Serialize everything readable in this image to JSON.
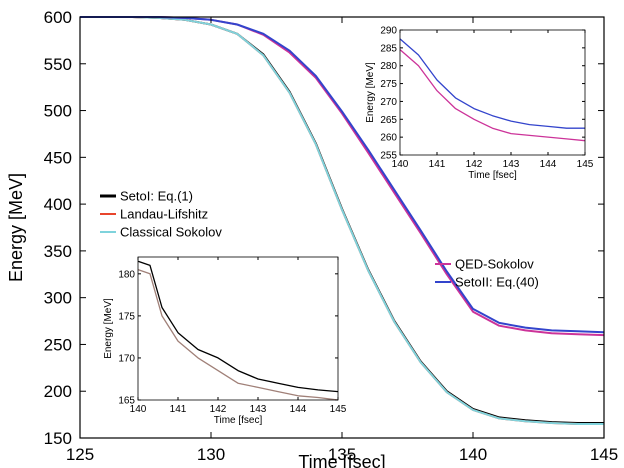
{
  "chart_data": [
    {
      "type": "line",
      "xlabel": "Time [fsec]",
      "ylabel": "Energy [MeV]",
      "xlim": [
        125,
        145
      ],
      "ylim": [
        150,
        600
      ],
      "xticks": [
        "125",
        "130",
        "135",
        "140",
        "145"
      ],
      "yticks": [
        "150",
        "200",
        "250",
        "300",
        "350",
        "400",
        "450",
        "500",
        "550",
        "600"
      ],
      "series": [
        {
          "name": "SetoI: Eq.(1)",
          "color": "#000000",
          "x": [
            125,
            126,
            127,
            128,
            129,
            130,
            131,
            132,
            133,
            134,
            135,
            136,
            137,
            138,
            139,
            140,
            141,
            142,
            143,
            144,
            145
          ],
          "y": [
            600,
            600,
            600,
            599,
            597,
            592,
            582,
            560,
            520,
            465,
            395,
            330,
            275,
            232,
            200,
            181,
            172,
            169,
            167,
            166,
            166
          ]
        },
        {
          "name": "Landau-Lifshitz",
          "color": "#e8452c",
          "x": [
            125,
            126,
            127,
            128,
            129,
            130,
            131,
            132,
            133,
            134,
            135,
            136,
            137,
            138,
            139,
            140,
            141,
            142,
            143,
            144,
            145
          ],
          "y": [
            600,
            600,
            600,
            599,
            597,
            592,
            582,
            559,
            519,
            464,
            394,
            329,
            274,
            231,
            199,
            180,
            171,
            168,
            166,
            165,
            165
          ]
        },
        {
          "name": "Classical Sokolov",
          "color": "#7fd3dc",
          "x": [
            125,
            126,
            127,
            128,
            129,
            130,
            131,
            132,
            133,
            134,
            135,
            136,
            137,
            138,
            139,
            140,
            141,
            142,
            143,
            144,
            145
          ],
          "y": [
            600,
            600,
            600,
            599,
            597,
            592,
            582,
            559,
            519,
            464,
            394,
            329,
            274,
            231,
            199,
            180,
            171,
            168,
            166,
            165,
            165
          ]
        },
        {
          "name": "QED-Sokolov",
          "color": "#cc3399",
          "x": [
            125,
            126,
            127,
            128,
            129,
            130,
            131,
            132,
            133,
            134,
            135,
            136,
            137,
            138,
            139,
            140,
            141,
            142,
            143,
            144,
            145
          ],
          "y": [
            600,
            600,
            600,
            600,
            599,
            597,
            592,
            581,
            562,
            535,
            497,
            455,
            412,
            369,
            325,
            285,
            270,
            265,
            262,
            261,
            260
          ]
        },
        {
          "name": "SetoII: Eq.(40)",
          "color": "#3344cc",
          "x": [
            125,
            126,
            127,
            128,
            129,
            130,
            131,
            132,
            133,
            134,
            135,
            136,
            137,
            138,
            139,
            140,
            141,
            142,
            143,
            144,
            145
          ],
          "y": [
            600,
            600,
            600,
            600,
            599,
            597,
            592,
            582,
            564,
            537,
            499,
            458,
            415,
            372,
            328,
            288,
            273,
            268,
            265,
            264,
            263
          ]
        }
      ]
    },
    {
      "type": "line",
      "xlabel": "Time [fsec]",
      "ylabel": "Energy [MeV]",
      "xlim": [
        140,
        145
      ],
      "ylim": [
        255,
        290
      ],
      "xticks": [
        "140",
        "141",
        "142",
        "143",
        "144",
        "145"
      ],
      "yticks": [
        "255",
        "260",
        "265",
        "270",
        "275",
        "280",
        "285",
        "290"
      ],
      "series": [
        {
          "color": "#cc3399",
          "x": [
            140,
            140.5,
            141,
            141.5,
            142,
            142.5,
            143,
            143.5,
            144,
            144.5,
            145
          ],
          "y": [
            284.5,
            280,
            273,
            268,
            265,
            262.5,
            261,
            260.5,
            260,
            259.5,
            259
          ]
        },
        {
          "color": "#3344cc",
          "x": [
            140,
            140.5,
            141,
            141.5,
            142,
            142.5,
            143,
            143.5,
            144,
            144.5,
            145
          ],
          "y": [
            287.5,
            283,
            276,
            271,
            268,
            266,
            264.5,
            263.5,
            263,
            262.5,
            262.5
          ]
        }
      ]
    },
    {
      "type": "line",
      "xlabel": "Time [fsec]",
      "ylabel": "Energy [MeV]",
      "xlim": [
        140,
        145
      ],
      "ylim": [
        165,
        182
      ],
      "xticks": [
        "140",
        "141",
        "142",
        "143",
        "144",
        "145"
      ],
      "yticks": [
        "165",
        "170",
        "175",
        "180"
      ],
      "series": [
        {
          "color": "#000000",
          "x": [
            140,
            140.3,
            140.6,
            141,
            141.5,
            142,
            142.5,
            143,
            143.5,
            144,
            144.5,
            145
          ],
          "y": [
            181.5,
            181,
            176,
            173,
            171,
            170,
            168.5,
            167.5,
            167,
            166.5,
            166.2,
            166
          ]
        },
        {
          "color": "#a08078",
          "x": [
            140,
            140.3,
            140.6,
            141,
            141.5,
            142,
            142.5,
            143,
            143.5,
            144,
            144.5,
            145
          ],
          "y": [
            180.5,
            180,
            175,
            172,
            170,
            168.5,
            167,
            166.5,
            166,
            165.5,
            165.3,
            165
          ]
        }
      ]
    }
  ]
}
